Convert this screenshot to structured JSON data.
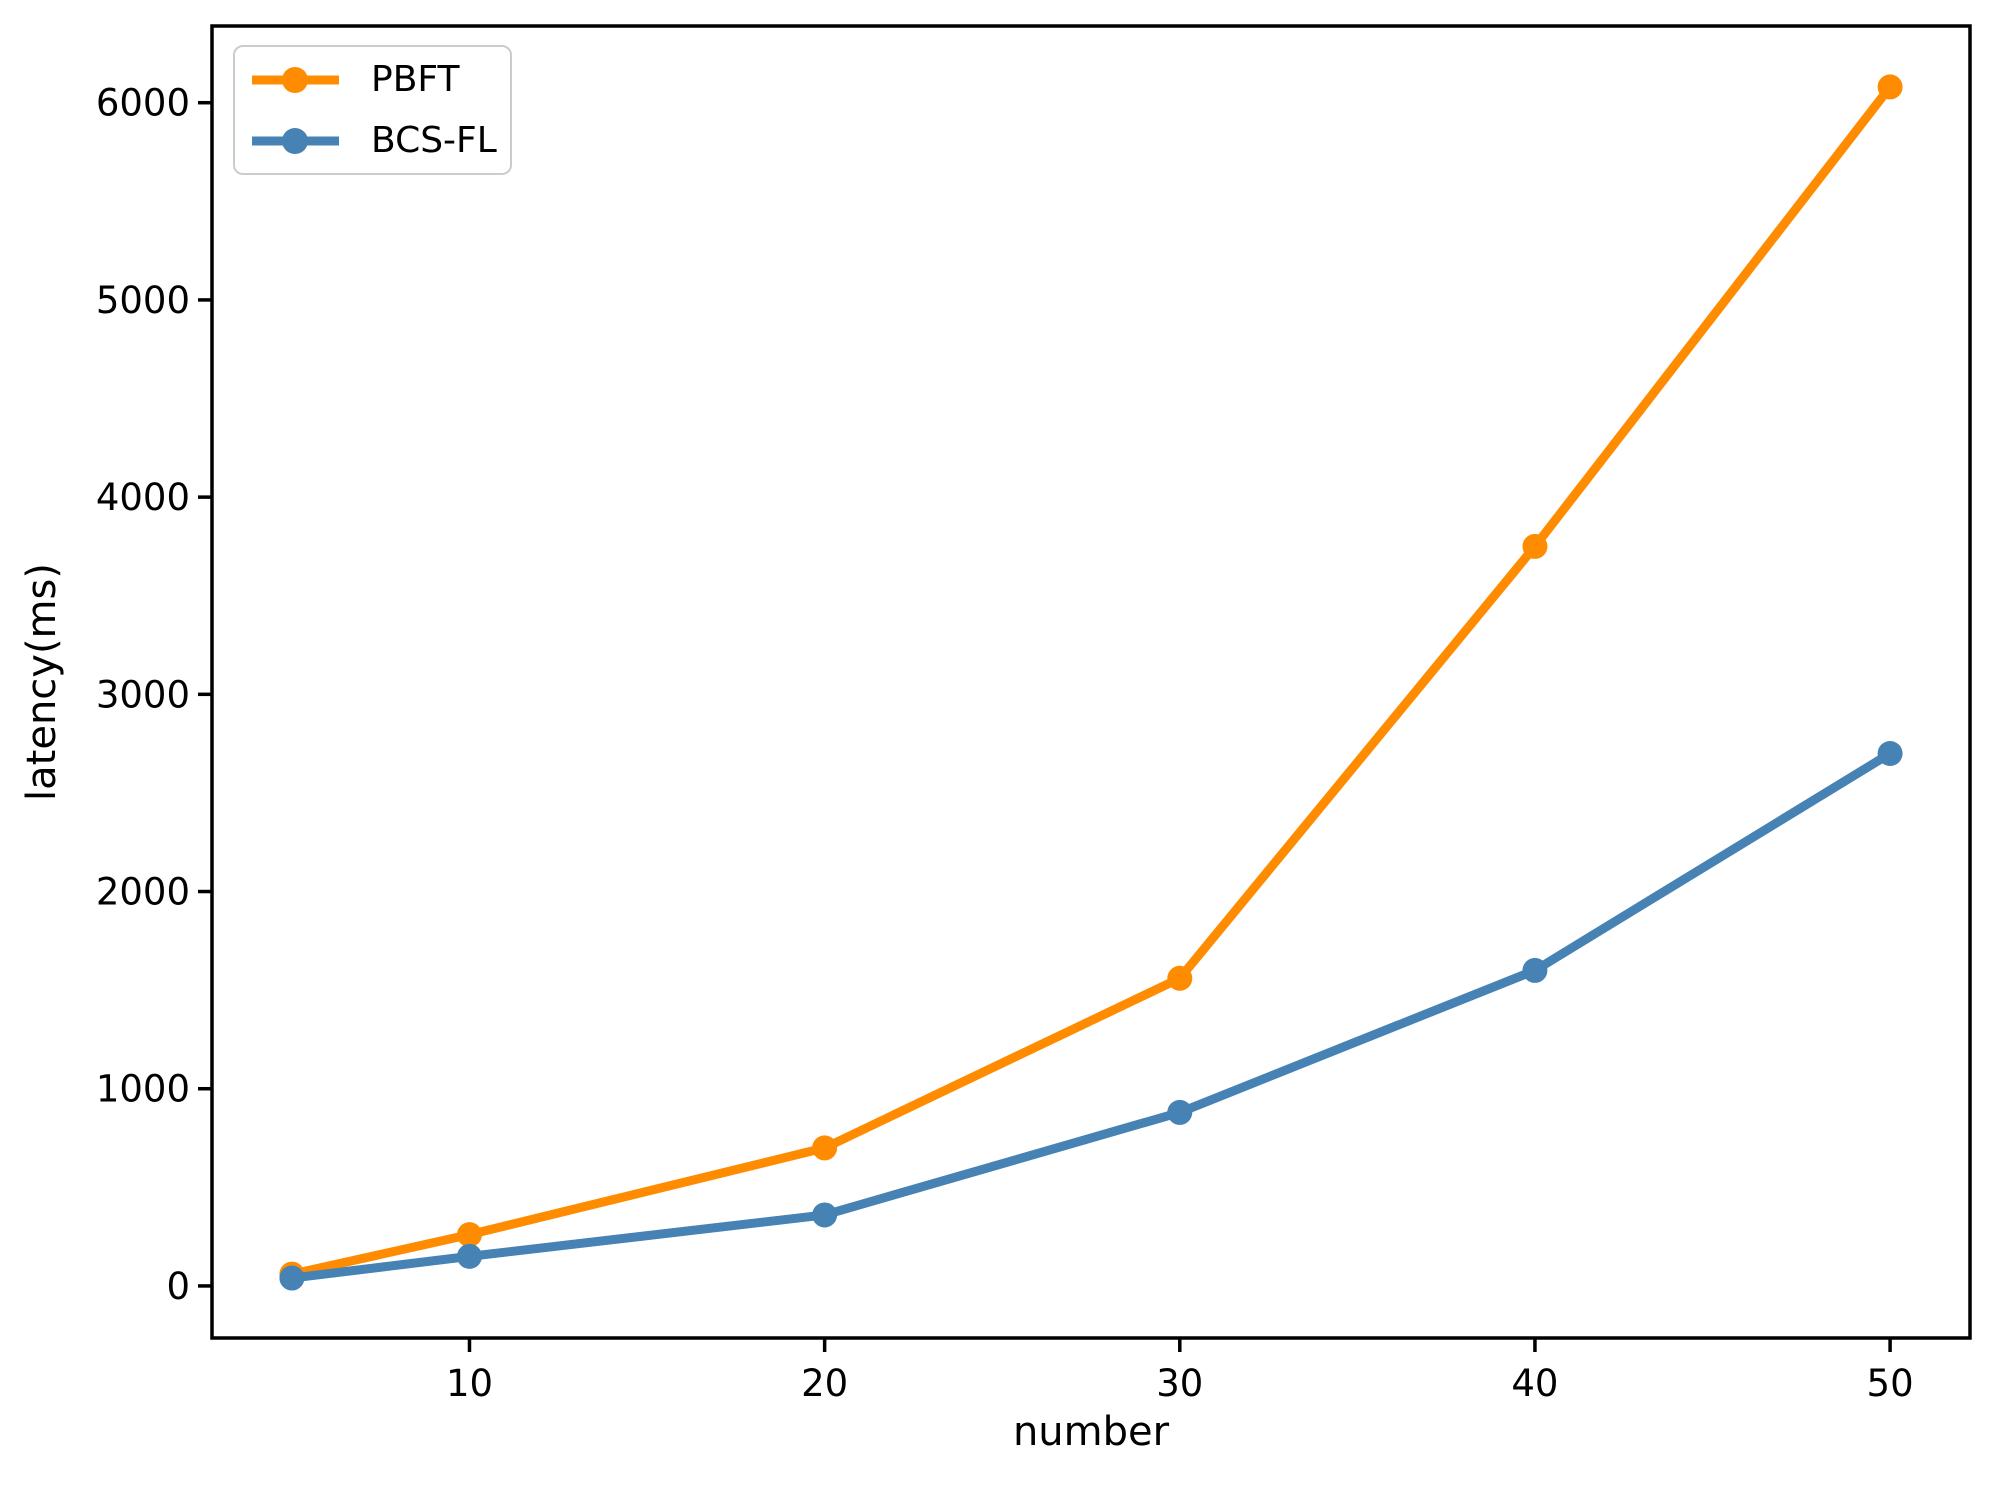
{
  "chart_data": {
    "type": "line",
    "x": [
      5,
      10,
      20,
      30,
      40,
      50
    ],
    "series": [
      {
        "name": "PBFT",
        "color": "#ff8c00",
        "values": [
          60,
          260,
          700,
          1560,
          3750,
          6080
        ]
      },
      {
        "name": "BCS-FL",
        "color": "#4682b4",
        "values": [
          40,
          150,
          360,
          880,
          1600,
          2700
        ]
      }
    ],
    "title": "",
    "xlabel": "number",
    "ylabel": "latency(ms)",
    "x_ticks": [
      10,
      20,
      30,
      40,
      50
    ],
    "y_ticks": [
      0,
      1000,
      2000,
      3000,
      4000,
      5000,
      6000
    ],
    "xlim": [
      2.75,
      52.25
    ],
    "ylim": [
      -264,
      6389
    ],
    "grid": false,
    "legend_position": "upper left",
    "marker": "circle",
    "axis_color": "#000000",
    "background_color": "#ffffff"
  }
}
